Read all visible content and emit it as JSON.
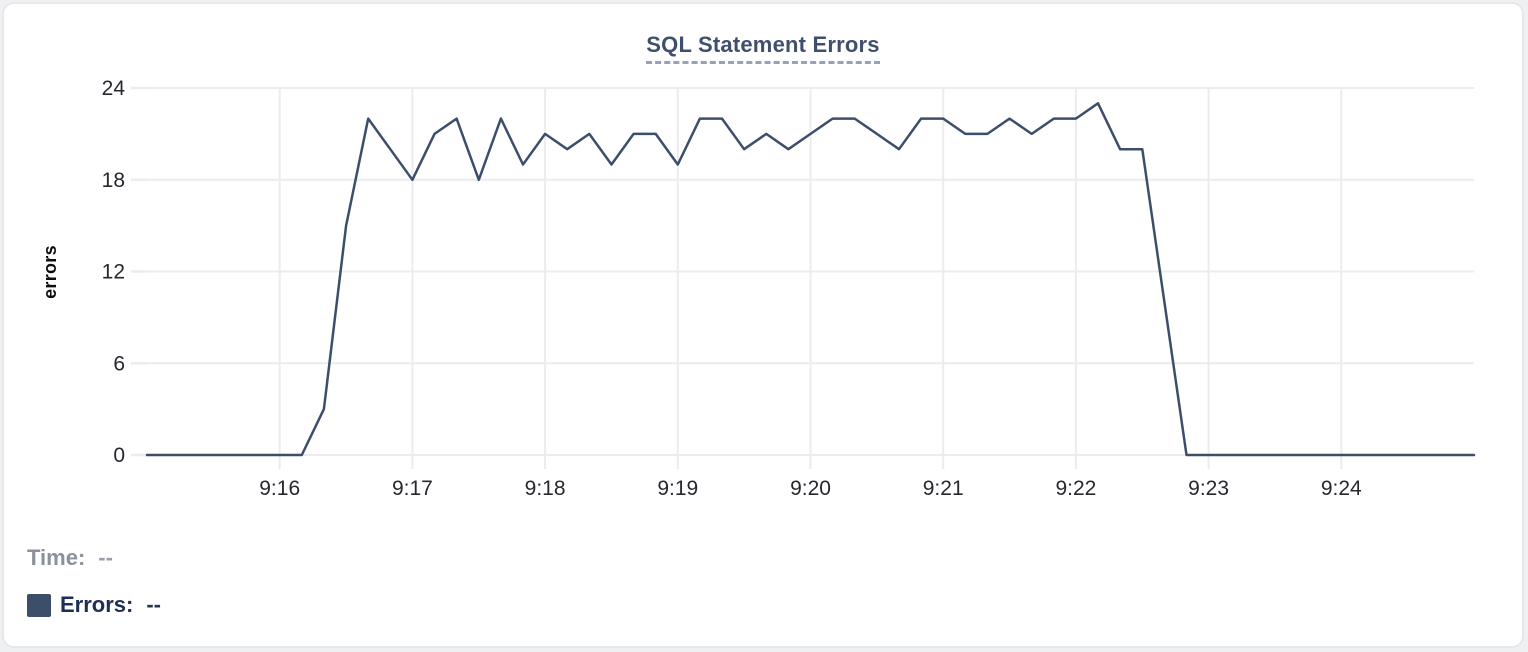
{
  "colors": {
    "line": "#3d4e6b",
    "title_text": "#3f4f6e",
    "title_underline": "#97a2b8",
    "grid": "#ececee",
    "axis_text": "#26282d",
    "muted_text": "#8b919c",
    "legend_text": "#1e2f55",
    "card_border": "#e7e8ec",
    "card_bg": "#ffffff",
    "page_bg": "#eef0f2"
  },
  "tooltip_readout": {
    "time_label": "Time:",
    "time_value": "--",
    "errors_label": "Errors:",
    "errors_value": "--"
  },
  "chart_data": {
    "type": "line",
    "title": "SQL Statement Errors",
    "xlabel": "",
    "ylabel": "errors",
    "y_ticks": [
      0,
      6,
      12,
      18,
      24
    ],
    "ylim": [
      0,
      24
    ],
    "x_tick_labels": [
      "9:16",
      "9:17",
      "9:18",
      "9:19",
      "9:20",
      "9:21",
      "9:22",
      "9:23",
      "9:24"
    ],
    "x_range": [
      "9:15:00",
      "9:25:00"
    ],
    "interval_seconds": 10,
    "grid": true,
    "legend_position": "bottom-left",
    "x_times": [
      "9:15:00",
      "9:15:10",
      "9:15:20",
      "9:15:30",
      "9:15:40",
      "9:15:50",
      "9:16:00",
      "9:16:10",
      "9:16:20",
      "9:16:30",
      "9:16:40",
      "9:16:50",
      "9:17:00",
      "9:17:10",
      "9:17:20",
      "9:17:30",
      "9:17:40",
      "9:17:50",
      "9:18:00",
      "9:18:10",
      "9:18:20",
      "9:18:30",
      "9:18:40",
      "9:18:50",
      "9:19:00",
      "9:19:10",
      "9:19:20",
      "9:19:30",
      "9:19:40",
      "9:19:50",
      "9:20:00",
      "9:20:10",
      "9:20:20",
      "9:20:30",
      "9:20:40",
      "9:20:50",
      "9:21:00",
      "9:21:10",
      "9:21:20",
      "9:21:30",
      "9:21:40",
      "9:21:50",
      "9:22:00",
      "9:22:10",
      "9:22:20",
      "9:22:30",
      "9:22:40",
      "9:22:50",
      "9:23:00",
      "9:23:10",
      "9:23:20",
      "9:23:30",
      "9:23:40",
      "9:23:50",
      "9:24:00",
      "9:24:10",
      "9:24:20",
      "9:24:30",
      "9:24:40",
      "9:24:50",
      "9:25:00"
    ],
    "series": [
      {
        "name": "Errors",
        "color": "#3d4e6b",
        "values": [
          0,
          0,
          0,
          0,
          0,
          0,
          0,
          0,
          3,
          15,
          22,
          20,
          18,
          21,
          22,
          18,
          22,
          19,
          21,
          20,
          21,
          19,
          21,
          21,
          19,
          22,
          22,
          20,
          21,
          20,
          21,
          22,
          22,
          21,
          20,
          22,
          22,
          21,
          21,
          22,
          21,
          22,
          22,
          23,
          20,
          20,
          10,
          0,
          0,
          0,
          0,
          0,
          0,
          0,
          0,
          0,
          0,
          0,
          0,
          0,
          0
        ]
      }
    ]
  }
}
